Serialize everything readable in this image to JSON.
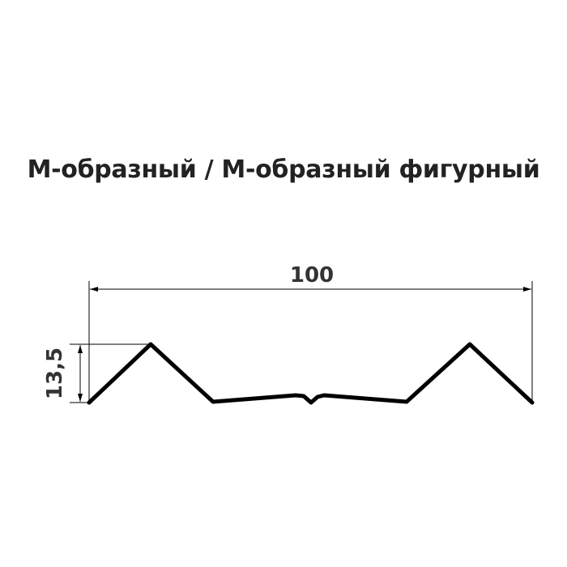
{
  "title": "М-образный / М-образный фигурный",
  "dimensions": {
    "width_label": "100",
    "height_label": "13,5"
  },
  "colors": {
    "profile": "#000000",
    "text": "#333333"
  }
}
